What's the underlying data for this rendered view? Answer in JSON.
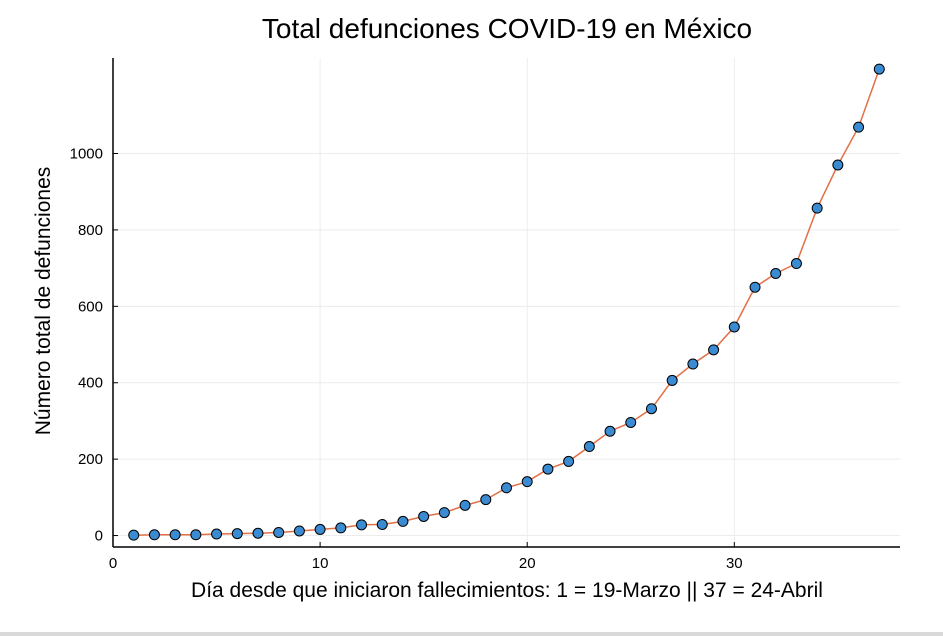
{
  "chart_data": {
    "type": "line",
    "title": "Total defunciones COVID-19 en México",
    "xlabel": "Día desde que iniciaron fallecimientos: 1 = 19-Marzo || 37 = 24-Abril",
    "ylabel": "Número total de defunciones",
    "xlim": [
      0,
      38
    ],
    "ylim": [
      -30,
      1250
    ],
    "xticks": [
      0,
      10,
      20,
      30
    ],
    "yticks": [
      0,
      200,
      400,
      600,
      800,
      1000
    ],
    "grid": true,
    "line_color": "#e26f46",
    "marker_color": "#3a8bd1",
    "series": [
      {
        "x": [
          1,
          2,
          3,
          4,
          5,
          6,
          7,
          8,
          9,
          10,
          11,
          12,
          13,
          14,
          15,
          16,
          17,
          18,
          19,
          20,
          21,
          22,
          23,
          24,
          25,
          26,
          27,
          28,
          29,
          30,
          31,
          32,
          33,
          34,
          35,
          36,
          37
        ],
        "values": [
          1,
          2,
          2,
          2,
          4,
          5,
          6,
          8,
          12,
          16,
          20,
          28,
          29,
          37,
          50,
          60,
          79,
          94,
          125,
          141,
          174,
          194,
          233,
          273,
          296,
          332,
          406,
          449,
          486,
          546,
          650,
          686,
          712,
          857,
          970,
          1069,
          1221
        ]
      }
    ]
  }
}
